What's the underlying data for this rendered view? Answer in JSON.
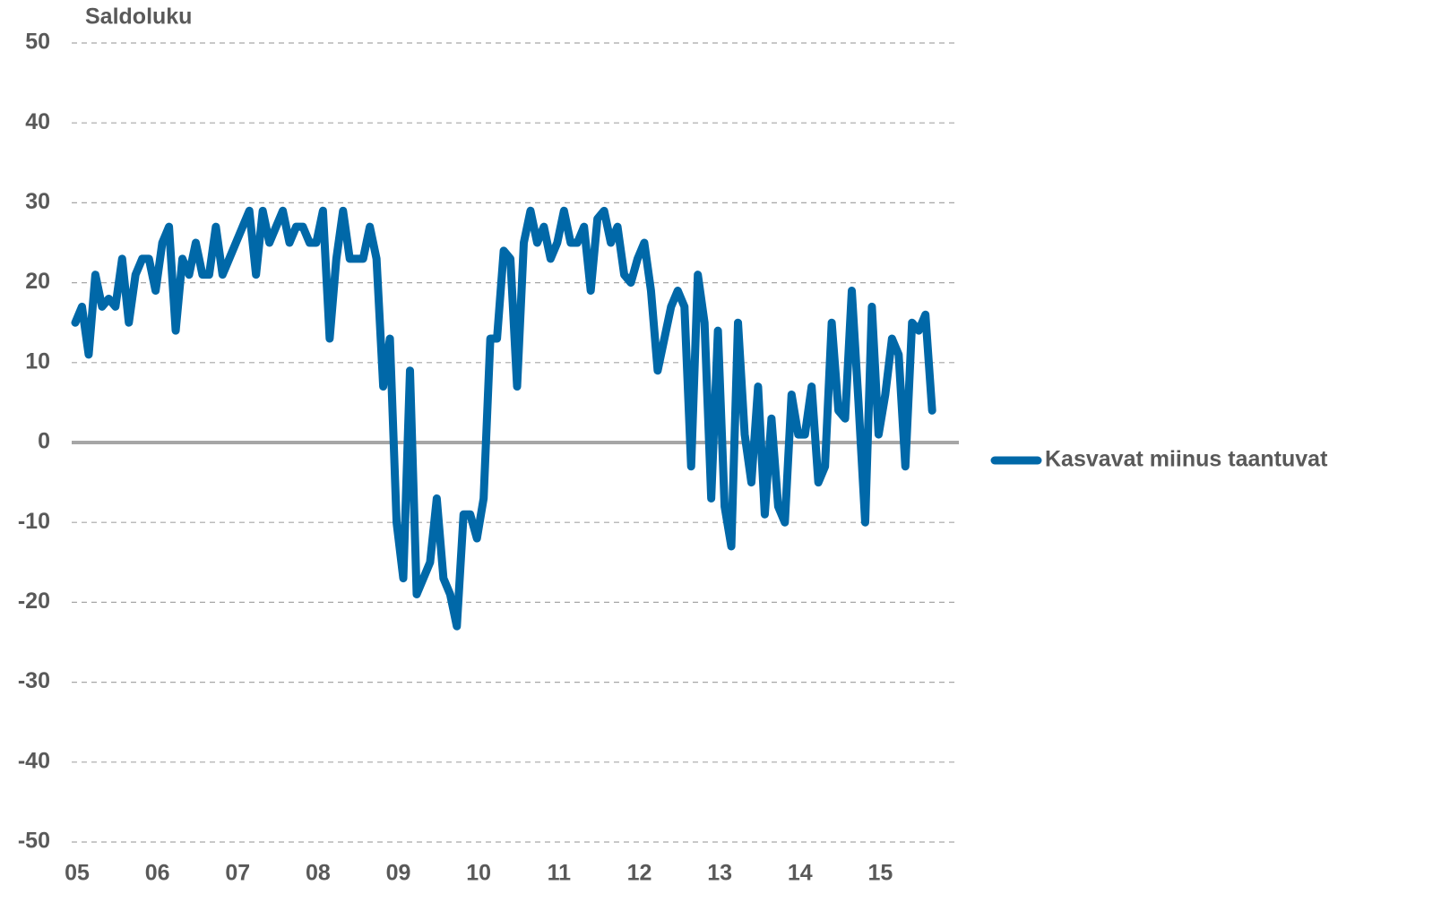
{
  "chart_data": {
    "type": "line",
    "y_label": "Saldoluku",
    "categories": [
      "05",
      null,
      null,
      null,
      null,
      null,
      null,
      null,
      null,
      null,
      null,
      null,
      "06",
      null,
      null,
      null,
      null,
      null,
      null,
      null,
      null,
      null,
      null,
      null,
      "07",
      null,
      null,
      null,
      null,
      null,
      null,
      null,
      null,
      null,
      null,
      null,
      "08",
      null,
      null,
      null,
      null,
      null,
      null,
      null,
      null,
      null,
      null,
      null,
      "09",
      null,
      null,
      null,
      null,
      null,
      null,
      null,
      null,
      null,
      null,
      null,
      "10",
      null,
      null,
      null,
      null,
      null,
      null,
      null,
      null,
      null,
      null,
      null,
      "11",
      null,
      null,
      null,
      null,
      null,
      null,
      null,
      null,
      null,
      null,
      null,
      "12",
      null,
      null,
      null,
      null,
      null,
      null,
      null,
      null,
      null,
      null,
      null,
      "13",
      null,
      null,
      null,
      null,
      null,
      null,
      null,
      null,
      null,
      null,
      null,
      "14",
      null,
      null,
      null,
      null,
      null,
      null,
      null,
      null,
      null,
      null,
      null,
      "15",
      null,
      null,
      null,
      null,
      null,
      null,
      null,
      null
    ],
    "series": [
      {
        "name": "Kasvavat miinus taantuvat",
        "color": "#0068a8",
        "values": [
          15,
          17,
          11,
          21,
          17,
          18,
          17,
          23,
          15,
          21,
          23,
          23,
          19,
          25,
          27,
          14,
          23,
          21,
          25,
          21,
          21,
          27,
          21,
          23,
          25,
          27,
          29,
          21,
          29,
          25,
          27,
          29,
          25,
          27,
          27,
          25,
          25,
          29,
          13,
          23,
          29,
          23,
          23,
          23,
          27,
          23,
          7,
          13,
          -10,
          -17,
          9,
          -19,
          -17,
          -15,
          -7,
          -17,
          -19,
          -23,
          -9,
          -9,
          -12,
          -7,
          13,
          13,
          24,
          23,
          7,
          25,
          29,
          25,
          27,
          23,
          25,
          29,
          25,
          25,
          27,
          19,
          28,
          29,
          25,
          27,
          21,
          20,
          23,
          25,
          19,
          9,
          13,
          17,
          19,
          17,
          -3,
          21,
          15,
          -7,
          14,
          -8,
          -13,
          15,
          1,
          -5,
          7,
          -9,
          3,
          -8,
          -10,
          6,
          1,
          1,
          7,
          -5,
          -3,
          15,
          4,
          3,
          19,
          5,
          -10,
          17,
          1,
          6,
          13,
          11,
          -3,
          15,
          14,
          16,
          4
        ]
      }
    ],
    "ylim": [
      -50,
      50
    ],
    "yticks": [
      -50,
      -40,
      -30,
      -20,
      -10,
      0,
      10,
      20,
      30,
      40,
      50
    ],
    "grid": true,
    "legend": "right"
  }
}
